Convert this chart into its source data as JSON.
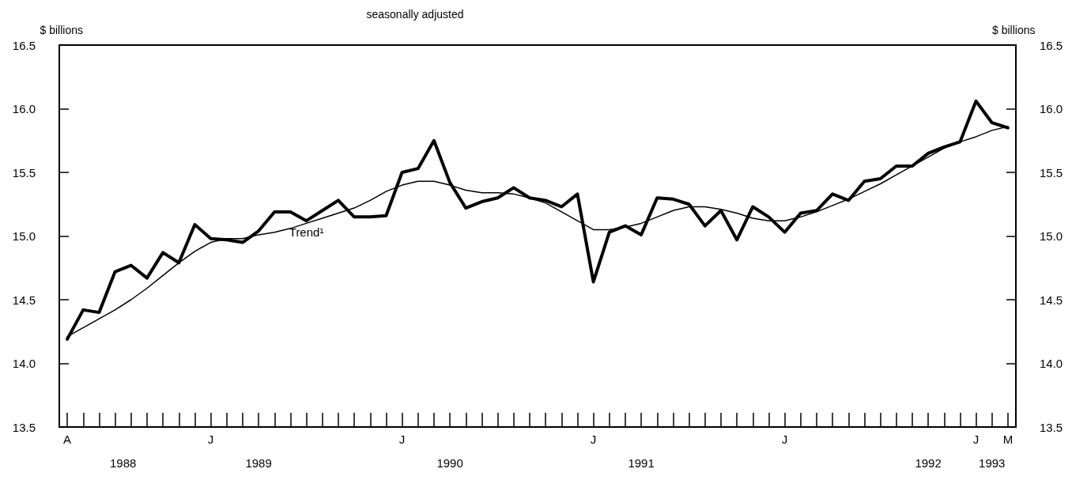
{
  "chart_data": {
    "type": "line",
    "title": "seasonally adjusted",
    "ylabel": "$ billions",
    "y2label": "$ billions",
    "categories": [
      "A",
      null,
      null,
      null,
      null,
      null,
      null,
      null,
      null,
      "J",
      null,
      null,
      null,
      null,
      null,
      null,
      null,
      null,
      null,
      null,
      null,
      "J",
      null,
      null,
      null,
      null,
      null,
      null,
      null,
      null,
      null,
      null,
      null,
      "J",
      null,
      null,
      null,
      null,
      null,
      null,
      null,
      null,
      null,
      null,
      null,
      "J",
      null,
      null,
      null,
      null,
      null,
      null,
      null,
      null,
      null,
      null,
      null,
      "J",
      null,
      "M"
    ],
    "series": [
      {
        "color": "#000000",
        "values": [
          14.19,
          14.42,
          14.4,
          14.72,
          14.77,
          14.67,
          14.87,
          14.79,
          15.09,
          14.98,
          14.97,
          14.95,
          15.04,
          15.19,
          15.19,
          15.12,
          15.2,
          15.28,
          15.15,
          15.15,
          15.16,
          15.5,
          15.53,
          15.75,
          15.42,
          15.22,
          15.27,
          15.3,
          15.38,
          15.3,
          15.28,
          15.23,
          15.33,
          14.64,
          15.03,
          15.08,
          15.01,
          15.3,
          15.29,
          15.25,
          15.08,
          15.2,
          14.97,
          15.23,
          15.15,
          15.03,
          15.18,
          15.2,
          15.33,
          15.28,
          15.43,
          15.45,
          15.55,
          15.55,
          15.65,
          15.7,
          15.74,
          16.06,
          15.89,
          15.85
        ]
      },
      {
        "color": "#000000",
        "values": [
          14.21,
          14.28,
          14.35,
          14.42,
          14.5,
          14.59,
          14.69,
          14.79,
          14.88,
          14.95,
          14.98,
          14.98,
          15.01,
          15.03,
          15.06,
          15.1,
          15.14,
          15.18,
          15.22,
          15.28,
          15.35,
          15.4,
          15.43,
          15.43,
          15.4,
          15.36,
          15.34,
          15.34,
          15.33,
          15.3,
          15.26,
          15.19,
          15.12,
          15.05,
          15.05,
          15.07,
          15.1,
          15.15,
          15.2,
          15.23,
          15.23,
          15.21,
          15.18,
          15.14,
          15.12,
          15.12,
          15.15,
          15.19,
          15.24,
          15.29,
          15.35,
          15.41,
          15.48,
          15.55,
          15.62,
          15.69,
          15.74,
          15.78,
          15.83,
          15.86
        ]
      }
    ],
    "ylim": [
      13.5,
      16.5
    ],
    "yticks": [
      {
        "value": 13.5,
        "label": "13.5"
      },
      {
        "value": 14.0,
        "label": "14.0"
      },
      {
        "value": 14.5,
        "label": "14.5"
      },
      {
        "value": 15.0,
        "label": "15.0"
      },
      {
        "value": 15.5,
        "label": "15.5"
      },
      {
        "value": 16.0,
        "label": "16.0"
      },
      {
        "value": 16.5,
        "label": "16.5"
      }
    ],
    "y2lim": [
      13.5,
      16.5
    ],
    "y2ticks": [
      {
        "value": 13.5,
        "label": "13.5"
      },
      {
        "value": 14.0,
        "label": "14.0"
      },
      {
        "value": 14.5,
        "label": "14.5"
      },
      {
        "value": 15.0,
        "label": "15.0"
      },
      {
        "value": 15.5,
        "label": "15.5"
      },
      {
        "value": 16.0,
        "label": "16.0"
      },
      {
        "value": 16.5,
        "label": "16.5"
      }
    ],
    "annotations": [
      "Trend¹",
      "1988",
      "1989",
      "1990",
      "1991",
      "1992",
      "1993"
    ],
    "grid": false,
    "marker": "none",
    "line_style": "solid"
  }
}
